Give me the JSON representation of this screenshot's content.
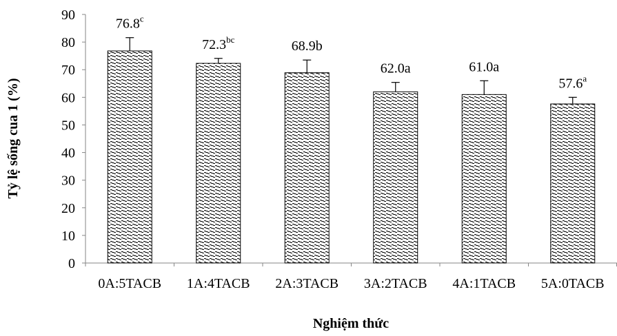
{
  "chart_data": {
    "type": "bar",
    "title": "",
    "xlabel": "Nghiệm thức",
    "ylabel": "Tỷ lệ sống cua 1 (%)",
    "ylim": [
      0,
      90
    ],
    "yticks": [
      0,
      10,
      20,
      30,
      40,
      50,
      60,
      70,
      80,
      90
    ],
    "grid": false,
    "legend": "none",
    "categories": [
      "0A:5TACB",
      "1A:4TACB",
      "2A:3TACB",
      "3A:2TACB",
      "4A:1TACB",
      "5A:0TACB"
    ],
    "values": [
      76.8,
      72.3,
      68.9,
      62.0,
      61.0,
      57.6
    ],
    "errors": [
      4.8,
      1.8,
      4.6,
      3.4,
      5.0,
      2.4
    ],
    "labels": [
      {
        "value": "76.8",
        "letter": "c",
        "superscript": true
      },
      {
        "value": "72.3",
        "letter": "bc",
        "superscript": true
      },
      {
        "value": "68.9",
        "letter": "b",
        "superscript": false
      },
      {
        "value": "62.0",
        "letter": "a",
        "superscript": false
      },
      {
        "value": "61.0",
        "letter": "a",
        "superscript": false
      },
      {
        "value": "57.6",
        "letter": "a",
        "superscript": true
      }
    ],
    "bar_fill": "hatched diagonal pattern",
    "bar_color": "#000000"
  }
}
